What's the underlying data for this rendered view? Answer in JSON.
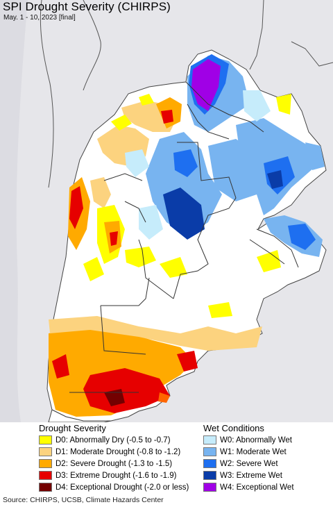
{
  "title": "SPI Drought Severity (CHIRPS)",
  "subtitle": "May. 1 - 10, 2023 [final]",
  "source": "Source: CHIRPS, UCSB, Climate Hazards Center",
  "legend": {
    "drought_title": "Drought Severity",
    "wet_title": "Wet Conditions",
    "drought_items": [
      {
        "label": "D0: Abnormally Dry (-0.5 to -0.7)",
        "color": "#ffff00"
      },
      {
        "label": "D1: Moderate Drought (-0.8 to -1.2)",
        "color": "#fcd37f"
      },
      {
        "label": "D2: Severe Drought (-1.3 to -1.5)",
        "color": "#ffaa00"
      },
      {
        "label": "D3: Extreme Drought (-1.6 to -1.9)",
        "color": "#e60000"
      },
      {
        "label": "D4: Exceptional Drought (-2.0 or less)",
        "color": "#730000"
      }
    ],
    "wet_items": [
      {
        "label": "W0: Abnormally Wet",
        "color": "#c6ecfb"
      },
      {
        "label": "W1: Moderate Wet",
        "color": "#78b4f0"
      },
      {
        "label": "W2: Severe Wet",
        "color": "#1e6ff0"
      },
      {
        "label": "W3: Extreme Wet",
        "color": "#0a3ca8"
      },
      {
        "label": "W4: Exceptional Wet",
        "color": "#a000e6"
      }
    ]
  },
  "map_colors": {
    "background": "#e8e8ec",
    "land": "#ffffff",
    "border": "#333333"
  }
}
